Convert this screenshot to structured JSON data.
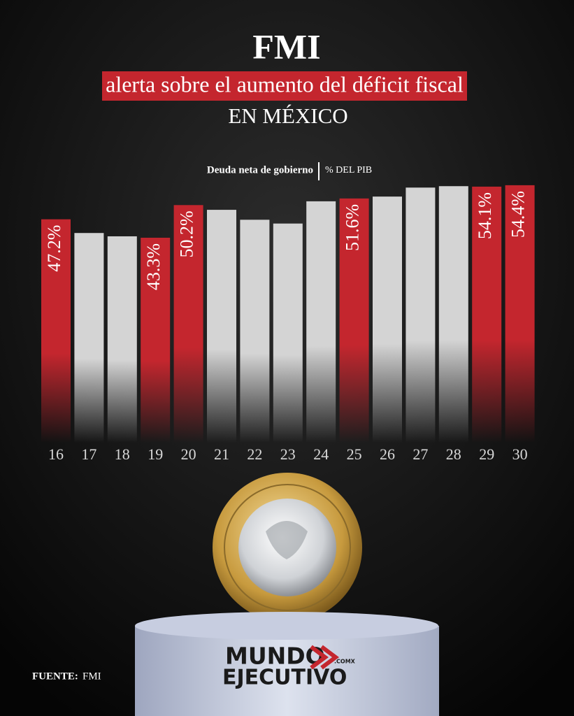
{
  "chart_data": {
    "type": "bar",
    "title": "FMI",
    "subtitle": "alerta sobre el aumento del déficit fiscal",
    "subtitle2": "EN MÉXICO",
    "series_label": "Deuda neta de gobierno",
    "unit_label": "% DEL PIB",
    "categories": [
      "16",
      "17",
      "18",
      "19",
      "20",
      "21",
      "22",
      "23",
      "24",
      "25",
      "26",
      "27",
      "28",
      "29",
      "30"
    ],
    "values": [
      47.2,
      44.3,
      43.6,
      43.3,
      50.2,
      49.2,
      47.1,
      46.3,
      51.0,
      51.6,
      52.0,
      53.9,
      54.2,
      54.1,
      54.4
    ],
    "value_labels": [
      "47.2%",
      null,
      null,
      "43.3%",
      "50.2%",
      null,
      null,
      null,
      null,
      "51.6%",
      null,
      null,
      null,
      "54.1%",
      "54.4%"
    ],
    "color": "#c4262e",
    "muted_color": "#d4d4d4",
    "ylim": [
      0,
      60
    ],
    "source_label": "FUENTE:",
    "source": "FMI",
    "logo": [
      "MUNDO",
      "EJECUTIVO",
      ".COMX"
    ]
  }
}
